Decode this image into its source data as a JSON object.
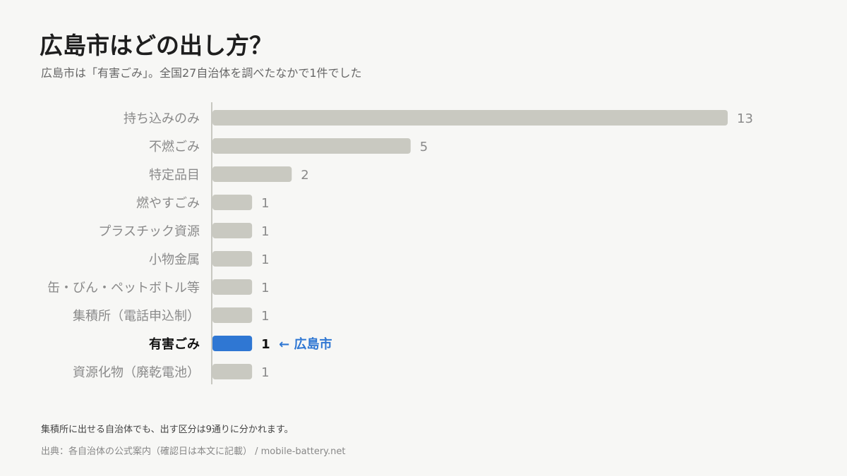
{
  "header": {
    "title": "広島市はどの出し方？",
    "subtitle": "広島市は「有害ごみ」。全国27自治体を調べたなかで1件でした"
  },
  "chart_data": {
    "type": "bar",
    "orientation": "horizontal",
    "categories": [
      "持ち込みのみ",
      "不燃ごみ",
      "特定品目",
      "燃やすごみ",
      "プラスチック資源",
      "小物金属",
      "缶・びん・ペットボトル等",
      "集積所（電話申込制）",
      "有害ごみ",
      "資源化物（廃乾電池）"
    ],
    "values": [
      13,
      5,
      2,
      1,
      1,
      1,
      1,
      1,
      1,
      1
    ],
    "highlight_index": 8,
    "highlight_annotation": "← 広島市",
    "xlim": [
      0,
      13
    ],
    "grid": false,
    "colors": {
      "bar": "#c9c9c1",
      "highlight": "#2f77d3",
      "label": "#8a8a8a",
      "highlight_label": "#111111",
      "annotation": "#2f77d3",
      "axis": "#b8b8b0"
    }
  },
  "footer": {
    "note": "集積所に出せる自治体でも、出す区分は9通りに分かれます。",
    "source": "出典：各自治体の公式案内（確認日は本文に記載） / mobile-battery.net"
  }
}
